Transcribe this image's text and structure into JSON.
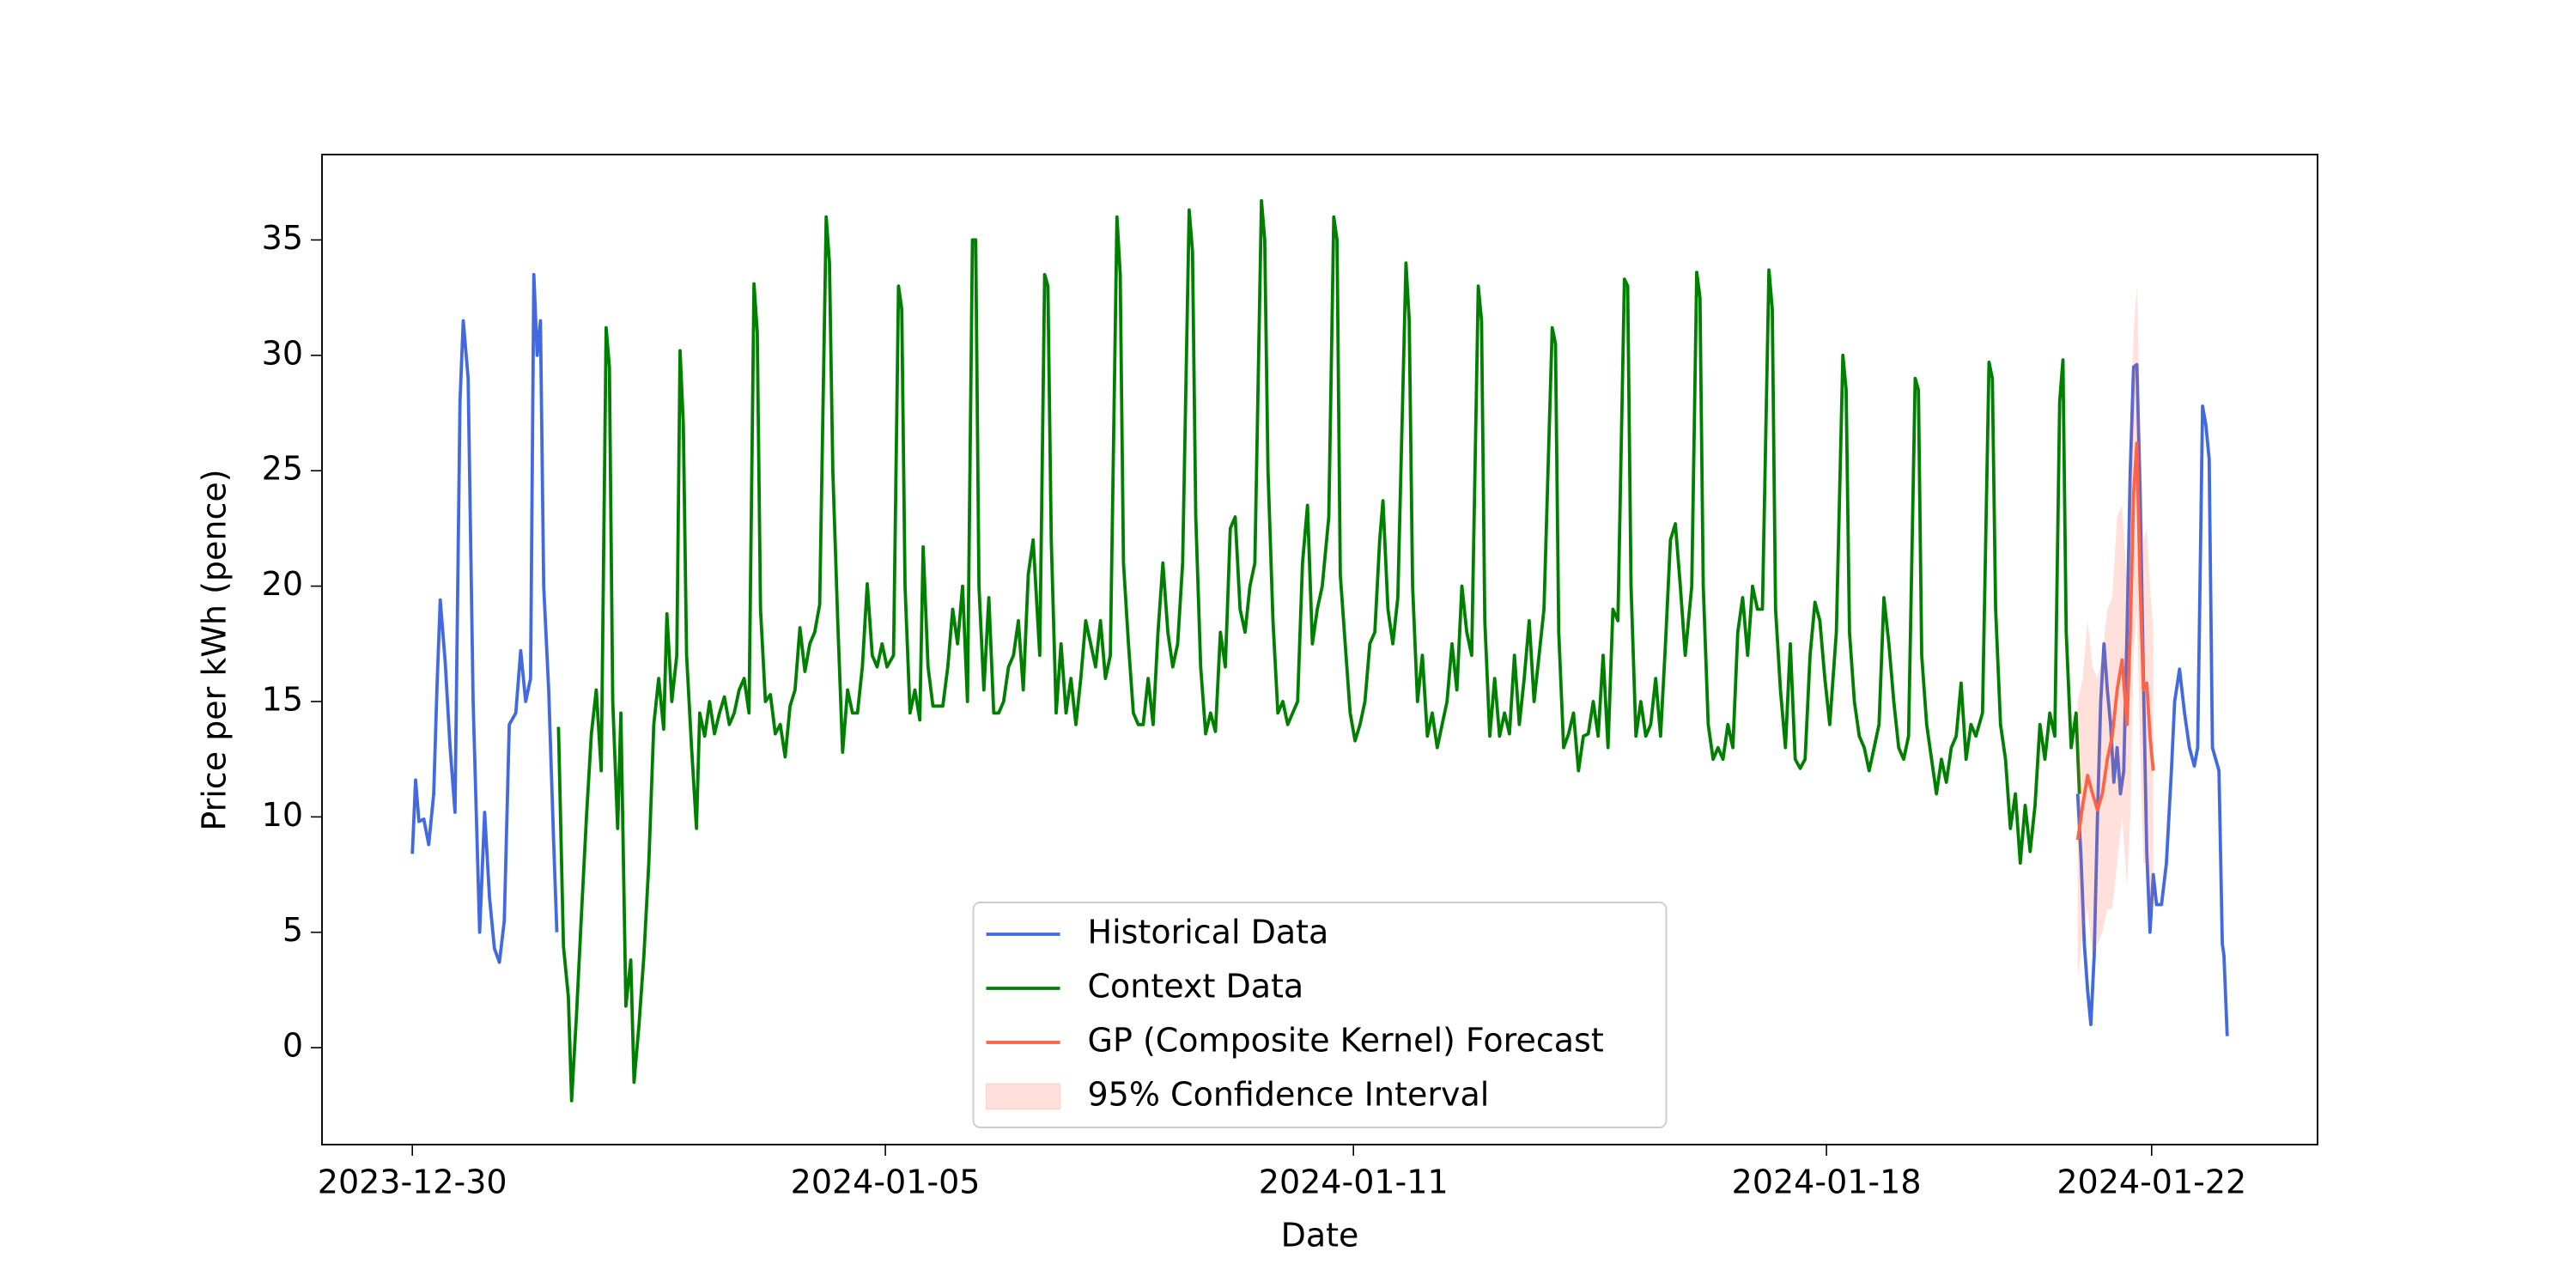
{
  "chart_data": {
    "type": "line",
    "xlabel": "Date",
    "ylabel": "Price per kWh (pence)",
    "xlim": [
      -27.5,
      580
    ],
    "ylim": [
      -4.2,
      38.7
    ],
    "xticks": [
      {
        "value": 0,
        "label": "2023-12-30"
      },
      {
        "value": 144,
        "label": "2024-01-05"
      },
      {
        "value": 286.5,
        "label": "2024-01-11"
      },
      {
        "value": 430.5,
        "label": "2024-01-18"
      },
      {
        "value": 529.5,
        "label": "2024-01-22"
      }
    ],
    "yticks": [
      0,
      5,
      10,
      15,
      20,
      25,
      30,
      35
    ],
    "grid": false,
    "legend": "lower center",
    "series": [
      {
        "name": "Historical Data",
        "color": "#4169e1",
        "x": [
          0,
          1,
          2,
          3.5,
          5,
          6.5,
          7.5,
          8.5,
          10,
          11.5,
          13,
          14.5,
          15.5,
          17,
          18.5,
          19.5,
          20.5,
          22,
          23.5,
          25,
          26.5,
          28,
          29.5,
          31.5,
          33,
          34.5,
          36,
          37,
          38,
          39,
          40,
          41.5,
          43,
          44,
          45,
          507,
          508,
          509,
          510,
          511,
          512,
          513,
          514,
          515,
          516,
          517,
          518,
          519,
          520,
          521,
          522,
          523,
          524,
          525,
          526,
          527,
          528,
          529,
          530,
          531,
          532.5,
          534,
          535.5,
          536.5,
          538,
          539.5,
          541,
          542.5,
          543.5,
          545,
          546,
          547,
          548,
          549,
          550,
          551,
          551.5,
          552.5
        ],
        "values": [
          8.4,
          11.6,
          9.8,
          9.9,
          8.8,
          11,
          15.6,
          19.4,
          16.7,
          13,
          10.2,
          28,
          31.5,
          29,
          15,
          10,
          5,
          10.2,
          6.5,
          4.3,
          3.7,
          5.5,
          14,
          14.5,
          17.2,
          15,
          16,
          33.5,
          30,
          31.5,
          20,
          15.5,
          9,
          5,
          null,
          11,
          8.2,
          4.5,
          2.5,
          1,
          4,
          10,
          15,
          17.5,
          15.5,
          14,
          11.5,
          13,
          11,
          12,
          18,
          25,
          29.5,
          29.6,
          24,
          16,
          8.5,
          5,
          7.5,
          6.2,
          6.2,
          8,
          12,
          15,
          16.4,
          14.5,
          13,
          12.2,
          13,
          27.8,
          27,
          25.5,
          13,
          12.5,
          12,
          4.5,
          4,
          0.5
        ]
      },
      {
        "name": "Context Data",
        "color": "#008000",
        "x": [
          44.5,
          46,
          47.5,
          48.5,
          50,
          51.5,
          53,
          54.5,
          56,
          57.5,
          59,
          60,
          61,
          62.5,
          63.5,
          65,
          66.5,
          67.5,
          69,
          70.5,
          72,
          73.5,
          75,
          76.5,
          77.5,
          79,
          80.5,
          81.5,
          82.5,
          83.5,
          85,
          86.5,
          87.5,
          89,
          90.5,
          92,
          93.5,
          95,
          96.5,
          98,
          99.5,
          101,
          102.5,
          104,
          105,
          106,
          107.5,
          109,
          110.5,
          112,
          113.5,
          115,
          116.5,
          118,
          119.5,
          121,
          122.5,
          124,
          126,
          127,
          128,
          129.5,
          131,
          132.5,
          134,
          135.5,
          137,
          138.5,
          140,
          141.5,
          143,
          144.5,
          146.5,
          148,
          149,
          150,
          151.5,
          153,
          154.5,
          155.5,
          157,
          158.5,
          160,
          161.5,
          163,
          164.5,
          166,
          167.5,
          169,
          170.5,
          171.5,
          172.5,
          174,
          175.5,
          177,
          178.5,
          180,
          181.5,
          183,
          184.5,
          186,
          187.5,
          189,
          191,
          192.5,
          193.5,
          194.5,
          196,
          197.5,
          199,
          200.5,
          202,
          203.5,
          205,
          206.5,
          208,
          209.5,
          211,
          212.5,
          214.5,
          215.5,
          216.5,
          218,
          219.5,
          221,
          222.5,
          224,
          225.5,
          227,
          228.5,
          230,
          231.5,
          233,
          234.5,
          236.5,
          237.5,
          238.5,
          240,
          241.5,
          243,
          244.5,
          246,
          247.5,
          249,
          250.5,
          252,
          253.5,
          255,
          256.5,
          258.5,
          259.5,
          260.5,
          262,
          263.5,
          265,
          266.5,
          268,
          269.5,
          271,
          272.5,
          274,
          275.5,
          277,
          279,
          280.5,
          281.5,
          282.5,
          284,
          285.5,
          287,
          288.5,
          290,
          291.5,
          293,
          294.5,
          295.5,
          297,
          298.5,
          300,
          302.5,
          303.5,
          304.5,
          306,
          307.5,
          309,
          310.5,
          312,
          313.5,
          315,
          316.5,
          318,
          319.5,
          321,
          322.5,
          324.5,
          325.5,
          326.5,
          328,
          329.5,
          331,
          332.5,
          334,
          335.5,
          337,
          338.5,
          340,
          341.5,
          343,
          344.5,
          347,
          348,
          349,
          350.5,
          352,
          353.5,
          355,
          356.5,
          358,
          359.5,
          361,
          362.5,
          364,
          365.5,
          367,
          369,
          370,
          371,
          372.5,
          374,
          375.5,
          377,
          378.5,
          380,
          381.5,
          383,
          384.5,
          386,
          387.5,
          389.5,
          391,
          392,
          393,
          394.5,
          396,
          397.5,
          399,
          400.5,
          402,
          403.5,
          405,
          406.5,
          408,
          409.5,
          411,
          413,
          414,
          415,
          416.5,
          418,
          419.5,
          421,
          422.5,
          424,
          425.5,
          427,
          428.5,
          430,
          431.5,
          433.5,
          435.5,
          436.5,
          437.5,
          439,
          440.5,
          442,
          443.5,
          445,
          446.5,
          448,
          449.5,
          451,
          452.5,
          454,
          455.5,
          457.5,
          458.5,
          459.5,
          461,
          462.5,
          464,
          465.5,
          467,
          468.5,
          470,
          471.5,
          473,
          474.5,
          476,
          478,
          480,
          481,
          482,
          483.5,
          485,
          486.5,
          488,
          489.5,
          491,
          492.5,
          494,
          495.5,
          497,
          498.5,
          500,
          501.5,
          502.5,
          503.5,
          505,
          506.5,
          507.5
        ],
        "values": [
          13.9,
          4.4,
          2.2,
          -2.3,
          1.5,
          5.8,
          10,
          13.6,
          15.5,
          12,
          31.2,
          29.5,
          15,
          9.5,
          14.5,
          1.8,
          3.8,
          -1.5,
          1,
          4,
          8,
          14,
          16,
          13.8,
          18.8,
          15,
          17,
          30.2,
          27,
          17,
          13,
          9.5,
          14.5,
          13.5,
          15,
          13.6,
          14.5,
          15.2,
          14,
          14.5,
          15.5,
          16,
          14.5,
          33.1,
          31,
          19,
          15,
          15.3,
          13.6,
          14,
          12.6,
          14.8,
          15.5,
          18.2,
          16.3,
          17.5,
          18,
          19.2,
          36,
          34,
          25,
          18.5,
          12.8,
          15.5,
          14.5,
          14.5,
          16.5,
          20.1,
          17,
          16.5,
          17.5,
          16.5,
          17,
          33,
          32,
          20,
          14.5,
          15.5,
          14.2,
          21.7,
          16.5,
          14.8,
          14.8,
          14.8,
          16.5,
          19,
          17.5,
          20,
          15,
          35,
          35,
          20,
          15.5,
          19.5,
          14.5,
          14.5,
          15,
          16.5,
          17,
          18.5,
          15.5,
          20.5,
          22,
          17,
          33.5,
          33,
          22,
          14.5,
          17.5,
          14.5,
          16,
          14,
          16,
          18.5,
          17.5,
          16.5,
          18.5,
          16,
          17,
          36,
          33.5,
          21,
          17.5,
          14.5,
          14,
          14,
          16,
          14,
          18,
          21,
          18,
          16.5,
          17.5,
          21,
          36.3,
          34.5,
          23,
          16.5,
          13.6,
          14.5,
          13.7,
          18,
          16.5,
          22.5,
          23,
          19,
          18,
          20,
          21,
          36.7,
          35,
          25,
          18.5,
          14.5,
          15,
          14,
          14.5,
          15,
          21,
          23.5,
          17.5,
          19,
          20,
          23,
          36,
          35,
          20.5,
          17.5,
          14.5,
          13.3,
          14,
          15,
          17.5,
          18,
          22,
          23.7,
          19,
          17.5,
          19.5,
          34,
          31.5,
          20,
          15,
          17,
          13.5,
          14.5,
          13,
          14,
          15,
          17.5,
          15.5,
          20,
          18,
          17,
          33,
          31.5,
          18.5,
          13.5,
          16,
          13.5,
          14.5,
          13.6,
          17,
          14,
          16,
          18.5,
          15,
          17,
          19,
          31.2,
          30.5,
          18,
          13,
          13.6,
          14.5,
          12,
          13.5,
          13.6,
          15,
          13.5,
          17,
          13,
          19,
          18.5,
          33.3,
          33,
          20,
          13.5,
          15,
          13.5,
          14,
          16,
          13.5,
          17.5,
          22,
          22.7,
          20,
          17,
          20,
          33.6,
          32.5,
          20,
          14,
          12.5,
          13,
          12.5,
          14,
          13,
          18,
          19.5,
          17,
          20,
          19,
          19,
          33.7,
          32,
          19,
          15.5,
          13,
          17.5,
          12.5,
          12.1,
          12.5,
          17,
          19.3,
          18.5,
          16,
          14,
          18,
          30,
          28.5,
          18,
          15,
          13.5,
          13,
          12,
          13,
          14,
          19.5,
          17.5,
          15,
          13,
          12.5,
          13.5,
          29,
          28.5,
          17,
          14,
          12.5,
          11,
          12.5,
          11.5,
          13,
          13.5,
          15.8,
          12.5,
          14,
          13.5,
          14.5,
          29.7,
          29,
          19,
          14,
          12.5,
          9.5,
          11,
          8,
          10.5,
          8.5,
          10.5,
          14,
          12.5,
          14.5,
          13.5,
          28,
          29.8,
          18,
          13,
          14.5,
          11
        ]
      },
      {
        "name": "GP (Composite Kernel) Forecast",
        "color": "#ff6347",
        "x": [
          507,
          508.5,
          510,
          511.5,
          513,
          514.5,
          516,
          517.5,
          519,
          520.5,
          522,
          523,
          524,
          525,
          526,
          527,
          528,
          529,
          530
        ],
        "values": [
          9,
          10.5,
          11.8,
          11,
          10.3,
          11,
          12.5,
          13.5,
          15.5,
          16.8,
          14,
          18,
          24,
          26.2,
          20,
          15.5,
          15.8,
          13.5,
          12
        ],
        "interval": {
          "name": "95% Confidence Interval",
          "color": "#ff6347",
          "lower": [
            3,
            5,
            6,
            4,
            4.5,
            5,
            6,
            6,
            8,
            10,
            7,
            10,
            17,
            19,
            13,
            8,
            8,
            6,
            6
          ],
          "upper": [
            15,
            16,
            18.5,
            16.5,
            16,
            17,
            19,
            19.5,
            23,
            23.5,
            20,
            25,
            31,
            33,
            27,
            22,
            22.5,
            20,
            18
          ]
        }
      }
    ]
  }
}
